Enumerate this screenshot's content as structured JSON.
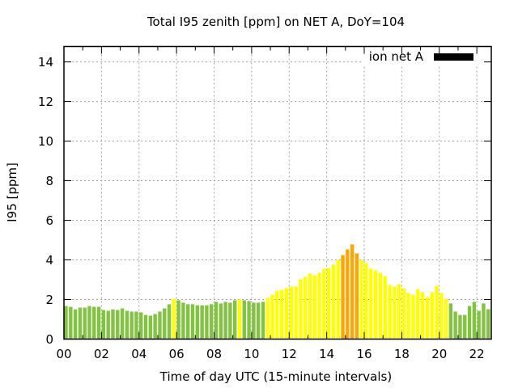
{
  "chart_data": {
    "type": "bar",
    "title": "Total I95 zenith [ppm] on NET A, DoY=104",
    "xlabel": "Time of day UTC (15-minute intervals)",
    "ylabel": "I95 [ppm]",
    "xlim": [
      0,
      22.77
    ],
    "ylim": [
      0,
      14.78
    ],
    "grid": true,
    "x_ticks": [
      0,
      2,
      4,
      6,
      8,
      10,
      12,
      14,
      16,
      18,
      20,
      22
    ],
    "x_tick_labels": [
      "00",
      "02",
      "04",
      "06",
      "08",
      "10",
      "12",
      "14",
      "16",
      "18",
      "20",
      "22"
    ],
    "y_ticks": [
      0,
      2,
      4,
      6,
      8,
      10,
      12,
      14
    ],
    "y_tick_labels": [
      "0",
      "2",
      "4",
      "6",
      "8",
      "10",
      "12",
      "14"
    ],
    "legend": {
      "placement": "top-right",
      "entries": [
        {
          "label": "ion net A",
          "color": "#000000"
        }
      ]
    },
    "bar_interval_hours": 0.25,
    "color_levels": {
      "low": "#82c341",
      "medium": "#ffff00",
      "high": "#ffa500"
    },
    "series": [
      {
        "name": "ion net A",
        "values": [
          1.67,
          1.63,
          1.5,
          1.59,
          1.59,
          1.67,
          1.63,
          1.63,
          1.47,
          1.43,
          1.5,
          1.47,
          1.55,
          1.43,
          1.39,
          1.39,
          1.35,
          1.22,
          1.18,
          1.27,
          1.39,
          1.55,
          1.76,
          2.04,
          1.96,
          1.84,
          1.76,
          1.76,
          1.71,
          1.71,
          1.71,
          1.76,
          1.88,
          1.8,
          1.88,
          1.84,
          1.96,
          2.0,
          1.96,
          1.92,
          1.84,
          1.84,
          1.88,
          2.08,
          2.24,
          2.45,
          2.49,
          2.57,
          2.65,
          2.65,
          3.02,
          3.14,
          3.31,
          3.22,
          3.35,
          3.55,
          3.59,
          3.76,
          4.0,
          4.24,
          4.53,
          4.78,
          4.33,
          4.0,
          3.84,
          3.55,
          3.47,
          3.35,
          3.18,
          2.73,
          2.65,
          2.78,
          2.57,
          2.33,
          2.24,
          2.53,
          2.37,
          2.12,
          2.37,
          2.69,
          2.33,
          2.04,
          1.8,
          1.39,
          1.22,
          1.22,
          1.67,
          1.88,
          1.43,
          1.8,
          1.51,
          1.39
        ],
        "levels": [
          "low",
          "low",
          "low",
          "low",
          "low",
          "low",
          "low",
          "low",
          "low",
          "low",
          "low",
          "low",
          "low",
          "low",
          "low",
          "low",
          "low",
          "low",
          "low",
          "low",
          "low",
          "low",
          "low",
          "medium",
          "low",
          "low",
          "low",
          "low",
          "low",
          "low",
          "low",
          "low",
          "low",
          "low",
          "low",
          "low",
          "low",
          "medium",
          "low",
          "low",
          "low",
          "low",
          "low",
          "medium",
          "medium",
          "medium",
          "medium",
          "medium",
          "medium",
          "medium",
          "medium",
          "medium",
          "medium",
          "medium",
          "medium",
          "medium",
          "medium",
          "medium",
          "medium",
          "high",
          "high",
          "high",
          "high",
          "medium",
          "medium",
          "medium",
          "medium",
          "medium",
          "medium",
          "medium",
          "medium",
          "medium",
          "medium",
          "medium",
          "medium",
          "medium",
          "medium",
          "medium",
          "medium",
          "medium",
          "medium",
          "medium",
          "low",
          "low",
          "low",
          "low",
          "low",
          "low",
          "low",
          "low",
          "low",
          "low"
        ]
      }
    ]
  }
}
